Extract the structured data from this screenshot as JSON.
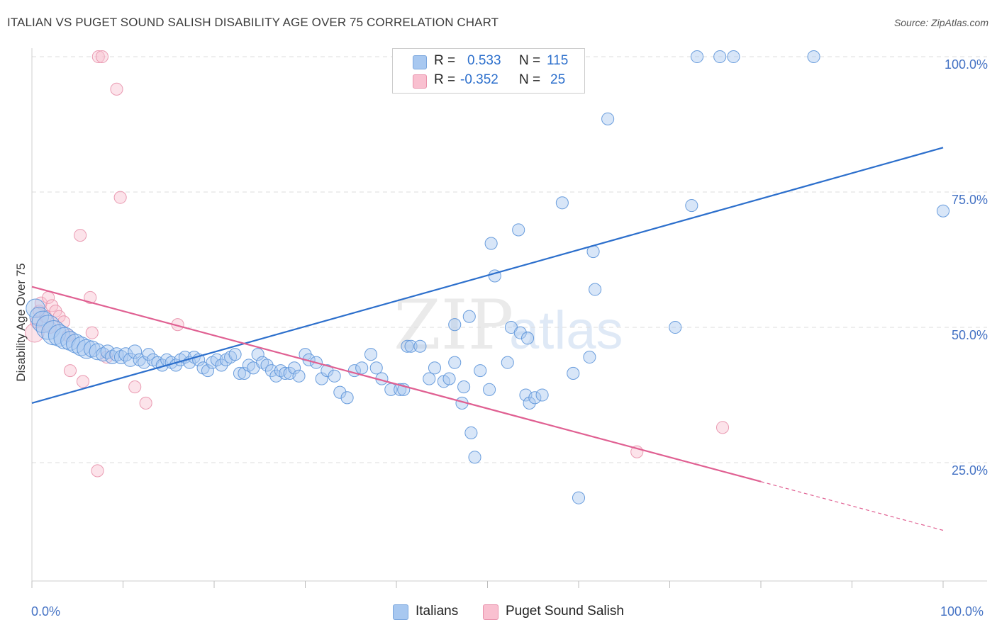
{
  "title": "ITALIAN VS PUGET SOUND SALISH DISABILITY AGE OVER 75 CORRELATION CHART",
  "source": "Source: ZipAtlas.com",
  "watermark": {
    "zip": "ZIP",
    "atlas": "atlas"
  },
  "legend": {
    "rows": [
      {
        "r_label": "R =",
        "r_value": "0.533",
        "n_label": "N =",
        "n_value": "115",
        "color": "#a8c8f0",
        "border": "#7aa6dd"
      },
      {
        "r_label": "R =",
        "r_value": "-0.352",
        "n_label": "N =",
        "n_value": "25",
        "color": "#f9c0d0",
        "border": "#e891ab"
      }
    ]
  },
  "bottom_legend": [
    {
      "label": "Italians",
      "color": "#a8c8f0",
      "border": "#7aa6dd"
    },
    {
      "label": "Puget Sound Salish",
      "color": "#f9c0d0",
      "border": "#e891ab"
    }
  ],
  "colors": {
    "blue": "#4a86d8",
    "blue_line": "#2c6fcc",
    "pink": "#e97aa0",
    "pink_line": "#e06092",
    "tick_text": "#4472c4",
    "grid": "#dddddd"
  },
  "chart_data": {
    "type": "scatter",
    "title": "ITALIAN VS PUGET SOUND SALISH DISABILITY AGE OVER 75 CORRELATION CHART",
    "xlabel": "",
    "ylabel": "Disability Age Over 75",
    "xlim": [
      0,
      100
    ],
    "ylim": [
      0,
      105
    ],
    "x_tick_labels": [
      "0.0%",
      "100.0%"
    ],
    "y_ticks": [
      25,
      50,
      75,
      100
    ],
    "y_tick_labels": [
      "25.0%",
      "50.0%",
      "75.0%",
      "100.0%"
    ],
    "grid": true,
    "legend_position": "top-center",
    "series": [
      {
        "name": "Italians",
        "trendline": {
          "x": [
            0,
            100
          ],
          "y": [
            36.0,
            83.2
          ]
        },
        "points": [
          [
            0.4,
            53.5,
            14
          ],
          [
            0.8,
            52,
            14
          ],
          [
            1.2,
            51,
            16
          ],
          [
            1.8,
            50,
            18
          ],
          [
            2.4,
            49,
            18
          ],
          [
            3,
            48.5,
            16
          ],
          [
            3.6,
            48,
            16
          ],
          [
            4.2,
            47.5,
            14
          ],
          [
            4.8,
            47,
            14
          ],
          [
            5.4,
            46.5,
            14
          ],
          [
            6,
            46,
            14
          ],
          [
            6.6,
            46,
            12
          ],
          [
            7.2,
            45.5,
            12
          ],
          [
            7.8,
            45,
            10
          ],
          [
            8.3,
            45.5,
            10
          ],
          [
            8.8,
            44.5,
            10
          ],
          [
            9.3,
            45,
            10
          ],
          [
            9.8,
            44.5,
            10
          ],
          [
            10.3,
            45,
            10
          ],
          [
            10.8,
            44,
            10
          ],
          [
            11.3,
            45.5,
            10
          ],
          [
            11.8,
            44,
            9
          ],
          [
            12.3,
            43.5,
            9
          ],
          [
            12.8,
            45,
            9
          ],
          [
            13.3,
            44,
            9
          ],
          [
            13.8,
            43.5,
            9
          ],
          [
            14.3,
            43,
            9
          ],
          [
            14.8,
            44,
            9
          ],
          [
            15.3,
            43.5,
            9
          ],
          [
            15.8,
            43,
            9
          ],
          [
            16.3,
            44,
            9
          ],
          [
            16.8,
            44.5,
            9
          ],
          [
            17.3,
            43.5,
            9
          ],
          [
            17.8,
            44.5,
            9
          ],
          [
            18.3,
            44,
            9
          ],
          [
            18.8,
            42.5,
            9
          ],
          [
            19.3,
            42,
            9
          ],
          [
            19.8,
            43.5,
            9
          ],
          [
            20.3,
            44,
            9
          ],
          [
            20.8,
            43,
            9
          ],
          [
            21.3,
            44,
            9
          ],
          [
            21.8,
            44.5,
            9
          ],
          [
            22.3,
            45,
            9
          ],
          [
            22.8,
            41.5,
            9
          ],
          [
            23.3,
            41.5,
            9
          ],
          [
            23.8,
            43,
            9
          ],
          [
            24.3,
            42.5,
            9
          ],
          [
            24.8,
            45,
            9
          ],
          [
            25.3,
            43.5,
            9
          ],
          [
            25.8,
            43,
            9
          ],
          [
            26.3,
            42,
            9
          ],
          [
            26.8,
            41,
            9
          ],
          [
            27.3,
            42,
            9
          ],
          [
            27.8,
            41.5,
            9
          ],
          [
            28.3,
            41.5,
            9
          ],
          [
            28.8,
            42.5,
            9
          ],
          [
            29.3,
            41,
            9
          ],
          [
            30,
            45,
            9
          ],
          [
            30.4,
            44,
            9
          ],
          [
            31.2,
            43.5,
            9
          ],
          [
            31.8,
            40.5,
            9
          ],
          [
            32.4,
            42,
            9
          ],
          [
            33.2,
            41,
            9
          ],
          [
            33.8,
            38,
            9
          ],
          [
            34.6,
            37,
            9
          ],
          [
            35.4,
            42,
            9
          ],
          [
            36.2,
            42.5,
            9
          ],
          [
            37.2,
            45,
            9
          ],
          [
            37.8,
            42.5,
            9
          ],
          [
            38.4,
            40.5,
            9
          ],
          [
            39.4,
            38.5,
            9
          ],
          [
            40.4,
            38.5,
            9
          ],
          [
            40.8,
            38.5,
            9
          ],
          [
            41.2,
            46.5,
            9
          ],
          [
            41.6,
            46.5,
            9
          ],
          [
            42.6,
            46.5,
            9
          ],
          [
            43.6,
            40.5,
            9
          ],
          [
            44.2,
            42.5,
            9
          ],
          [
            45.2,
            40,
            9
          ],
          [
            45.8,
            40.5,
            9
          ],
          [
            46.4,
            43.5,
            9
          ],
          [
            47.2,
            36,
            9
          ],
          [
            47.4,
            39,
            9
          ],
          [
            48.2,
            30.5,
            9
          ],
          [
            49.2,
            42,
            9
          ],
          [
            50.2,
            38.5,
            9
          ],
          [
            52.2,
            43.5,
            9
          ],
          [
            54.2,
            37.5,
            9
          ],
          [
            54.6,
            36,
            9
          ],
          [
            55.2,
            37,
            9
          ],
          [
            56,
            37.5,
            9
          ],
          [
            48.6,
            26,
            9
          ],
          [
            50.4,
            65.5,
            9
          ],
          [
            50.8,
            59.5,
            9
          ],
          [
            53.4,
            68,
            9
          ],
          [
            52.6,
            50,
            9
          ],
          [
            53.6,
            49,
            9
          ],
          [
            54.4,
            48,
            9
          ],
          [
            48,
            52,
            9
          ],
          [
            46.4,
            50.5,
            9
          ],
          [
            61.6,
            64,
            9
          ],
          [
            61.8,
            57,
            9
          ],
          [
            58.2,
            73,
            9
          ],
          [
            63.2,
            88.5,
            9
          ],
          [
            61.2,
            44.5,
            9
          ],
          [
            59.4,
            41.5,
            9
          ],
          [
            60,
            18.5,
            9
          ],
          [
            70.6,
            50,
            9
          ],
          [
            72.4,
            72.5,
            9
          ],
          [
            73,
            100,
            9
          ],
          [
            75.5,
            100,
            9
          ],
          [
            77,
            100,
            9
          ],
          [
            85.8,
            100,
            9
          ],
          [
            100,
            71.5,
            9
          ]
        ]
      },
      {
        "name": "Puget Sound Salish",
        "trendline": {
          "x": [
            0,
            80
          ],
          "y": [
            57.5,
            21.5
          ],
          "dashed_to": {
            "x": 100,
            "y": 12.5
          }
        },
        "points": [
          [
            0.5,
            51,
            9
          ],
          [
            0.8,
            53,
            9
          ],
          [
            1,
            54.5,
            9
          ],
          [
            1.5,
            52,
            9
          ],
          [
            1.8,
            55.5,
            9
          ],
          [
            2,
            50,
            9
          ],
          [
            2.2,
            54,
            9
          ],
          [
            2.6,
            53,
            9
          ],
          [
            3,
            52,
            9
          ],
          [
            3.5,
            51,
            9
          ],
          [
            4,
            48.5,
            9
          ],
          [
            4.2,
            42,
            9
          ],
          [
            5.3,
            67,
            9
          ],
          [
            5.6,
            40,
            9
          ],
          [
            6.4,
            55.5,
            9
          ],
          [
            6.6,
            49,
            9
          ],
          [
            7.2,
            23.5,
            9
          ],
          [
            7.3,
            100,
            9
          ],
          [
            7.7,
            100,
            9
          ],
          [
            8.2,
            44.5,
            9
          ],
          [
            9.3,
            94,
            9
          ],
          [
            9.7,
            74,
            9
          ],
          [
            11.3,
            39,
            9
          ],
          [
            12.5,
            36,
            9
          ],
          [
            16,
            50.5,
            9
          ],
          [
            66.4,
            27,
            9
          ],
          [
            75.8,
            31.5,
            9
          ],
          [
            0.3,
            49,
            14
          ]
        ]
      }
    ]
  }
}
